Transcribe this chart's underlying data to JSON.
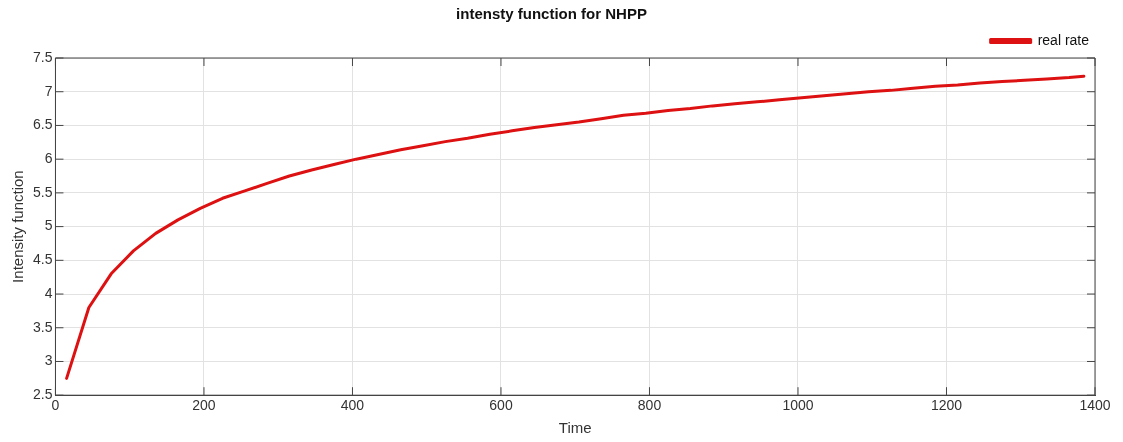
{
  "chart_data": {
    "type": "line",
    "title": "intensty function for NHPP",
    "xlabel": "Time",
    "ylabel": "Intensity function",
    "xlim": [
      0,
      1400
    ],
    "xticks": [
      0,
      200,
      400,
      600,
      800,
      1000,
      1200,
      1400
    ],
    "ylim": [
      2.5,
      7.5
    ],
    "yticks": [
      2.5,
      3,
      3.5,
      4,
      4.5,
      5,
      5.5,
      6,
      6.5,
      7,
      7.5
    ],
    "grid": true,
    "legend": "top right",
    "marker": "none",
    "line_style": "solid",
    "series": [
      {
        "name": "real rate",
        "color": "#dd1111",
        "x": [
          15,
          45,
          75,
          105,
          135,
          165,
          195,
          225,
          255,
          285,
          315,
          345,
          375,
          405,
          435,
          465,
          495,
          525,
          555,
          585,
          615,
          645,
          675,
          705,
          735,
          765,
          795,
          825,
          855,
          885,
          915,
          945,
          975,
          1005,
          1035,
          1065,
          1095,
          1125,
          1155,
          1185,
          1215,
          1245,
          1275,
          1305,
          1335,
          1365,
          1385
        ],
        "values": [
          2.75,
          3.8,
          4.3,
          4.64,
          4.9,
          5.1,
          5.27,
          5.42,
          5.53,
          5.64,
          5.75,
          5.84,
          5.92,
          6.0,
          6.07,
          6.14,
          6.2,
          6.26,
          6.31,
          6.37,
          6.42,
          6.47,
          6.51,
          6.55,
          6.6,
          6.65,
          6.68,
          6.72,
          6.75,
          6.79,
          6.82,
          6.85,
          6.88,
          6.91,
          6.94,
          6.97,
          7.0,
          7.02,
          7.05,
          7.08,
          7.1,
          7.13,
          7.15,
          7.17,
          7.19,
          7.21,
          7.23
        ]
      }
    ]
  }
}
